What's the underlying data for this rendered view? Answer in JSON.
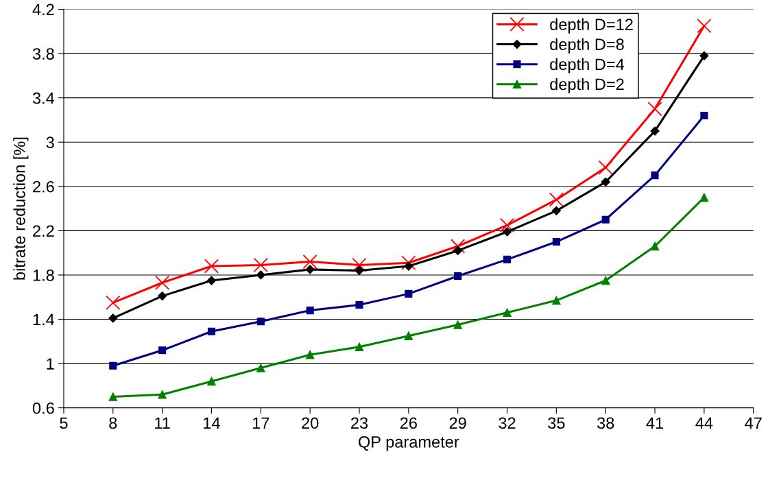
{
  "chart_data": {
    "type": "line",
    "xlabel": "QP parameter",
    "ylabel": "bitrate reduction [%]",
    "x": [
      8,
      11,
      14,
      17,
      20,
      23,
      26,
      29,
      32,
      35,
      38,
      41,
      44
    ],
    "series": [
      {
        "name": "depth D=12",
        "color": "#ff0000",
        "marker": "cross",
        "values": [
          1.55,
          1.73,
          1.88,
          1.89,
          1.92,
          1.89,
          1.91,
          2.06,
          2.25,
          2.48,
          2.77,
          3.3,
          4.05
        ]
      },
      {
        "name": "depth D=8",
        "color": "#000000",
        "marker": "diamond",
        "values": [
          1.41,
          1.61,
          1.75,
          1.8,
          1.85,
          1.84,
          1.88,
          2.02,
          2.19,
          2.38,
          2.64,
          3.1,
          3.78
        ]
      },
      {
        "name": "depth D=4",
        "color": "#000080",
        "marker": "square",
        "values": [
          0.98,
          1.12,
          1.29,
          1.38,
          1.48,
          1.53,
          1.63,
          1.79,
          1.94,
          2.1,
          2.3,
          2.7,
          3.24
        ]
      },
      {
        "name": "depth D=2",
        "color": "#008000",
        "marker": "triangle",
        "values": [
          0.7,
          0.72,
          0.84,
          0.96,
          1.08,
          1.15,
          1.25,
          1.35,
          1.46,
          1.57,
          1.75,
          2.06,
          2.5
        ]
      }
    ],
    "xlim": [
      5,
      47
    ],
    "xticks": [
      5,
      8,
      11,
      14,
      17,
      20,
      23,
      26,
      29,
      32,
      35,
      38,
      41,
      44,
      47
    ],
    "ylim": [
      0.6,
      4.2
    ],
    "yticks": [
      0.6,
      1,
      1.4,
      1.8,
      2.2,
      2.6,
      3,
      3.4,
      3.8,
      4.2
    ],
    "grid": "y",
    "legend": "top right",
    "line_style": "solid"
  }
}
